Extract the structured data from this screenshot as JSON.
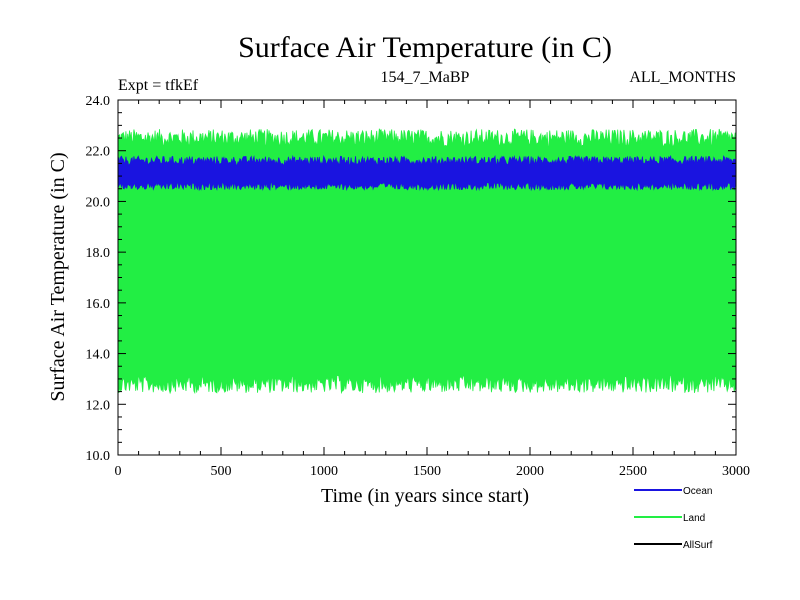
{
  "chart_data": {
    "type": "line",
    "title": "Surface Air Temperature (in C)",
    "header_left": "Expt = tfkEf",
    "header_center": "154_7_MaBP",
    "header_right": "ALL_MONTHS",
    "xlabel": "Time (in years since start)",
    "ylabel": "Surface Air Temperature (in C)",
    "xlim": [
      0,
      3000
    ],
    "ylim": [
      10.0,
      24.0
    ],
    "x_ticks": [
      0,
      500,
      1000,
      1500,
      2000,
      2500,
      3000
    ],
    "x_tick_labels": [
      "0",
      "500",
      "1000",
      "1500",
      "2000",
      "2500",
      "3000"
    ],
    "y_ticks": [
      10,
      12,
      14,
      16,
      18,
      20,
      22,
      24
    ],
    "y_tick_labels": [
      "10.0",
      "12.0",
      "14.0",
      "16.0",
      "18.0",
      "20.0",
      "22.0",
      "24.0"
    ],
    "legend_position": "bottom-right, below plot",
    "series": [
      {
        "name": "Land",
        "color": "#22ee44",
        "kind": "oscillating band",
        "upper_mean": 22.4,
        "upper_amp": 0.35,
        "lower_mean": 12.9,
        "lower_amp": 0.35
      },
      {
        "name": "Ocean",
        "color": "#1a14e0",
        "kind": "oscillating band",
        "upper_mean": 21.55,
        "upper_amp": 0.18,
        "lower_mean": 20.65,
        "lower_amp": 0.15
      },
      {
        "name": "AllSurf",
        "color": "#000000",
        "kind": "line"
      }
    ],
    "legend": [
      {
        "name": "Ocean",
        "color": "#1a14e0"
      },
      {
        "name": "Land",
        "color": "#22ee44"
      },
      {
        "name": "AllSurf",
        "color": "#000000"
      }
    ]
  }
}
